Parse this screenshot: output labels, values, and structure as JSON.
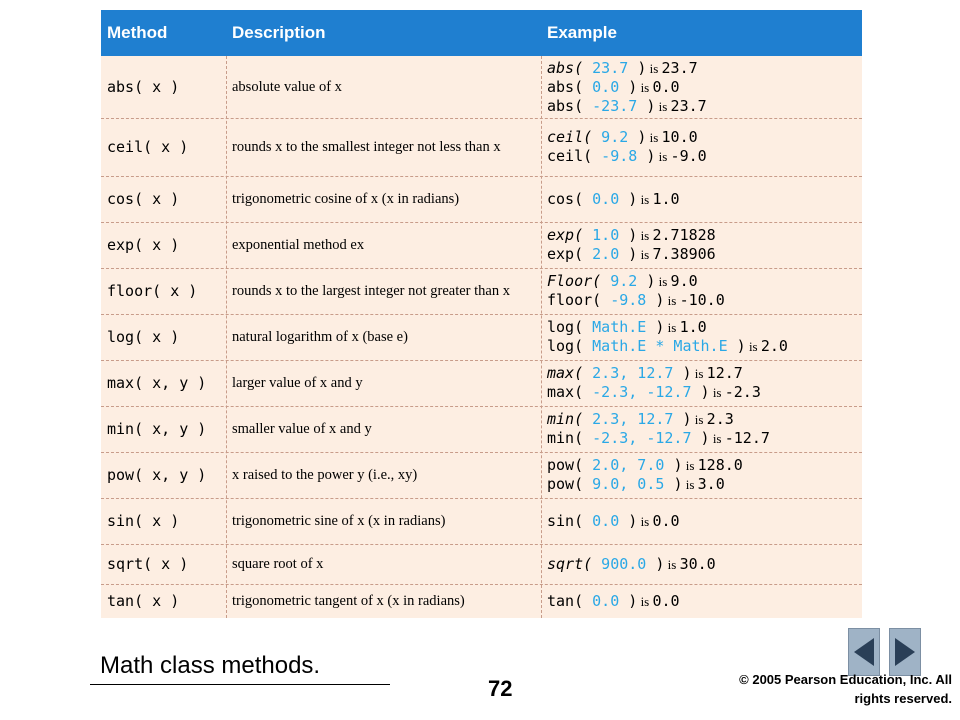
{
  "table": {
    "headers": {
      "method": "Method",
      "description": "Description",
      "example": "Example"
    },
    "rows": [
      {
        "method": "abs( x )",
        "description": "absolute value of x",
        "examples": [
          {
            "fn": "abs(",
            "italic": true,
            "arg": " 23.7 ",
            "close": ")",
            "is": " is ",
            "result": "23.7"
          },
          {
            "fn": "abs(",
            "italic": false,
            "arg": " 0.0 ",
            "close": ")",
            "is": " is ",
            "result": "0.0"
          },
          {
            "fn": "abs(",
            "italic": false,
            "arg": " -23.7 ",
            "close": ")",
            "is": " is ",
            "result": "23.7"
          }
        ]
      },
      {
        "method": "ceil( x )",
        "description": "rounds x to the smallest integer not less than x",
        "examples": [
          {
            "fn": "ceil(",
            "italic": true,
            "arg": " 9.2 ",
            "close": ")",
            "is": " is ",
            "result": "10.0"
          },
          {
            "fn": "ceil(",
            "italic": false,
            "arg": " -9.8 ",
            "close": ")",
            "is": " is ",
            "result": "-9.0"
          }
        ]
      },
      {
        "method": "cos( x )",
        "description": "trigonometric cosine of x (x in radians)",
        "examples": [
          {
            "fn": "cos(",
            "italic": false,
            "arg": " 0.0 ",
            "close": ")",
            "is": " is ",
            "result": "1.0"
          }
        ]
      },
      {
        "method": "exp( x )",
        "description": "exponential method ex",
        "examples": [
          {
            "fn": "exp(",
            "italic": true,
            "arg": " 1.0 ",
            "close": ")",
            "is": " is ",
            "result": "2.71828"
          },
          {
            "fn": "exp(",
            "italic": false,
            "arg": " 2.0 ",
            "close": ")",
            "is": " is ",
            "result": "7.38906"
          }
        ]
      },
      {
        "method": "floor( x )",
        "description": "rounds x to the largest integer not greater than x",
        "examples": [
          {
            "fn": "Floor(",
            "italic": true,
            "arg": " 9.2 ",
            "close": ")",
            "is": " is ",
            "result": "9.0"
          },
          {
            "fn": "floor(",
            "italic": false,
            "arg": " -9.8 ",
            "close": ")",
            "is": " is ",
            "result": "-10.0"
          }
        ]
      },
      {
        "method": "log( x )",
        "description": "natural logarithm of x (base e)",
        "examples": [
          {
            "fn": "log(",
            "italic": false,
            "arg": " Math.E ",
            "close": ")",
            "is": " is ",
            "result": "1.0"
          },
          {
            "fn": "log(",
            "italic": false,
            "arg": " Math.E * Math.E ",
            "close": ")",
            "is": " is ",
            "result": "2.0"
          }
        ]
      },
      {
        "method": "max( x, y )",
        "description": "larger value of x and y",
        "examples": [
          {
            "fn": "max(",
            "italic": true,
            "arg": " 2.3, 12.7 ",
            "close": ")",
            "is": " is ",
            "result": "12.7"
          },
          {
            "fn": "max(",
            "italic": false,
            "arg": " -2.3, -12.7 ",
            "close": ")",
            "is": " is ",
            "result": "-2.3"
          }
        ]
      },
      {
        "method": "min( x, y )",
        "description": "smaller value of x and y",
        "examples": [
          {
            "fn": "min(",
            "italic": true,
            "arg": " 2.3, 12.7 ",
            "close": ")",
            "is": " is ",
            "result": "2.3"
          },
          {
            "fn": "min(",
            "italic": false,
            "arg": " -2.3, -12.7 ",
            "close": ")",
            "is": " is ",
            "result": "-12.7"
          }
        ]
      },
      {
        "method": "pow( x, y )",
        "description": "x raised to the power y (i.e., xy)",
        "examples": [
          {
            "fn": "pow(",
            "italic": false,
            "arg": " 2.0, 7.0 ",
            "close": ")",
            "is": " is ",
            "result": "128.0"
          },
          {
            "fn": "pow(",
            "italic": false,
            "arg": " 9.0, 0.5 ",
            "close": ")",
            "is": " is ",
            "result": "3.0"
          }
        ]
      },
      {
        "method": "sin( x )",
        "description": "trigonometric sine of x (x in radians)",
        "examples": [
          {
            "fn": "sin(",
            "italic": false,
            "arg": " 0.0 ",
            "close": ")",
            "is": " is ",
            "result": "0.0"
          }
        ]
      },
      {
        "method": "sqrt( x )",
        "description": "square root of x",
        "examples": [
          {
            "fn": "sqrt(",
            "italic": true,
            "arg": " 900.0 ",
            "close": ")",
            "is": " is ",
            "result": "30.0"
          }
        ]
      },
      {
        "method": "tan( x )",
        "description": "trigonometric tangent of x (x in radians)",
        "examples": [
          {
            "fn": "tan(",
            "italic": false,
            "arg": " 0.0 ",
            "close": ")",
            "is": " is ",
            "result": "0.0"
          }
        ]
      }
    ]
  },
  "caption": "Math class methods.",
  "page_number": "72",
  "copyright": "© 2005 Pearson Education, Inc.  All rights reserved.",
  "nav": {
    "prev_icon": "triangle-left-icon",
    "next_icon": "triangle-right-icon"
  },
  "colors": {
    "header_bg": "#1f7fd0",
    "table_bg": "#fdeee2",
    "arg_color": "#2aa8e6",
    "nav_btn": "#9fb3c6"
  }
}
